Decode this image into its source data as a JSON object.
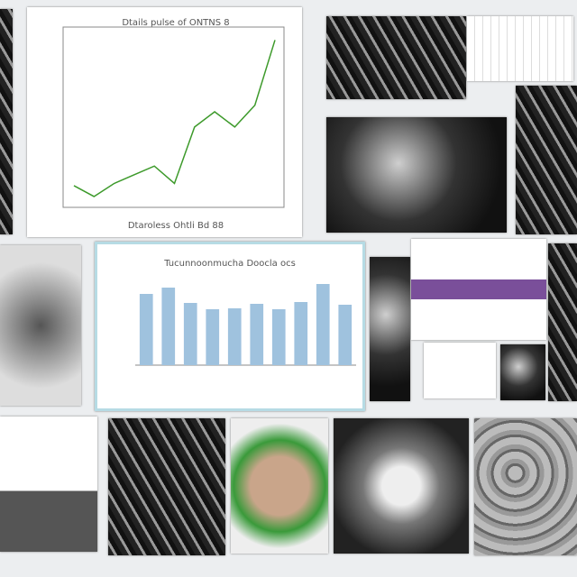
{
  "line_chart": {
    "type": "line",
    "title": "Dtails pulse of ONTNS 8",
    "xlabel": "Dtaroless Ohtli Bd 88",
    "values": [
      0.1,
      -0.4,
      0.2,
      0.6,
      1.0,
      0.2,
      2.8,
      3.5,
      2.8,
      3.8,
      6.8
    ],
    "color": "#3d9a2b",
    "ylim": [
      -0.9,
      7.4
    ]
  },
  "bar_chart": {
    "type": "bar",
    "title": "Tucunnoonmucha Doocla ocs",
    "values": [
      79,
      86,
      69,
      62,
      63,
      68,
      62,
      70,
      90,
      67
    ],
    "color": "#9fc2de",
    "ylim": [
      0,
      105
    ]
  }
}
